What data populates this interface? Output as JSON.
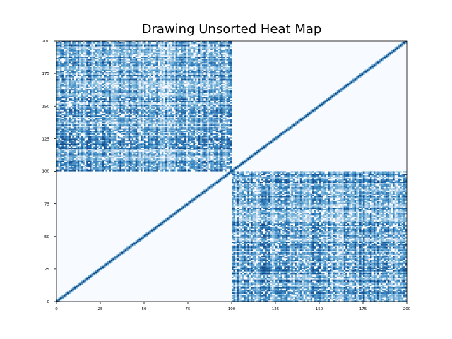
{
  "chart_data": {
    "type": "heatmap",
    "title": "Drawing Unsorted Heat Map",
    "xlabel": "",
    "ylabel": "",
    "xlim": [
      0,
      200
    ],
    "ylim": [
      0,
      200
    ],
    "x_ticks": [
      "0",
      "25",
      "50",
      "75",
      "100",
      "125",
      "150",
      "175",
      "200"
    ],
    "y_ticks": [
      "0",
      "25",
      "50",
      "75",
      "100",
      "125",
      "150",
      "175",
      "200"
    ],
    "colormap": "Blues",
    "colors": {
      "empty": "#f7fbff",
      "light": "#c6dbef",
      "mid": "#6baed6",
      "dark": "#2171b5",
      "darkest": "#08306b"
    },
    "grid": false,
    "legend": "none",
    "blocks": [
      {
        "x_range": [
          0,
          100
        ],
        "y_range": [
          100,
          200
        ],
        "description_values": "dense random"
      },
      {
        "x_range": [
          100,
          200
        ],
        "y_range": [
          0,
          100
        ],
        "description_values": "dense random"
      }
    ],
    "diagonal": "strong"
  }
}
